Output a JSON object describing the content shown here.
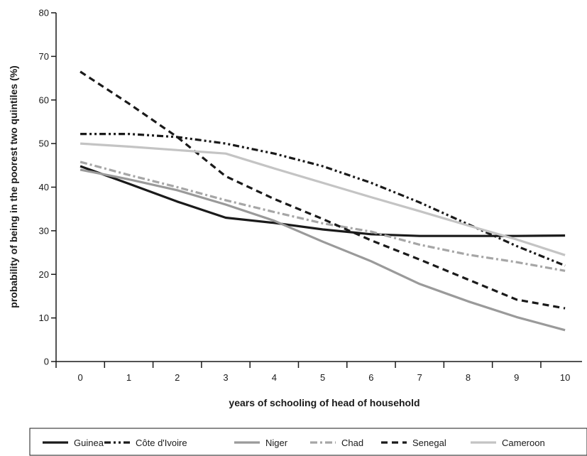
{
  "chart_data": {
    "type": "line",
    "title": "",
    "xlabel": "years of schooling of head of household",
    "ylabel": "probability of being in the poorest two quintiles (%)",
    "x": [
      0,
      1,
      2,
      3,
      4,
      5,
      6,
      7,
      8,
      9,
      10
    ],
    "xlim": [
      -0.5,
      10.35
    ],
    "ylim": [
      0,
      80
    ],
    "yticks": [
      0,
      10,
      20,
      30,
      40,
      50,
      60,
      70,
      80
    ],
    "grid": false,
    "legend_position": "bottom",
    "series": [
      {
        "name": "Guinea",
        "color": "#1a1a1a",
        "dash": "solid",
        "values": [
          44.8,
          40.8,
          36.7,
          33.0,
          31.8,
          30.3,
          29.2,
          28.8,
          28.8,
          28.8,
          28.9
        ]
      },
      {
        "name": "Côte d'Ivoire",
        "color": "#1a1a1a",
        "dash": "dashdotdot",
        "values": [
          52.2,
          52.2,
          51.5,
          50.0,
          47.7,
          44.8,
          41.0,
          36.5,
          31.5,
          26.5,
          22.0
        ]
      },
      {
        "name": "Niger",
        "color": "#9a9a9a",
        "dash": "solid",
        "values": [
          44.0,
          41.8,
          39.3,
          36.0,
          32.3,
          27.5,
          23.0,
          17.8,
          13.8,
          10.2,
          7.2
        ]
      },
      {
        "name": "Chad",
        "color": "#a6a6a6",
        "dash": "dashdot",
        "values": [
          45.8,
          42.8,
          40.0,
          37.0,
          34.3,
          31.7,
          29.8,
          26.8,
          24.5,
          22.8,
          20.8
        ]
      },
      {
        "name": "Senegal",
        "color": "#1a1a1a",
        "dash": "dashed",
        "values": [
          66.5,
          59.2,
          51.5,
          42.5,
          37.3,
          32.7,
          27.8,
          23.4,
          18.8,
          14.2,
          12.2
        ]
      },
      {
        "name": "Cameroon",
        "color": "#c4c4c4",
        "dash": "solid",
        "values": [
          50.0,
          49.3,
          48.5,
          47.7,
          44.3,
          41.0,
          37.7,
          34.5,
          31.2,
          28.0,
          24.4
        ]
      }
    ]
  }
}
